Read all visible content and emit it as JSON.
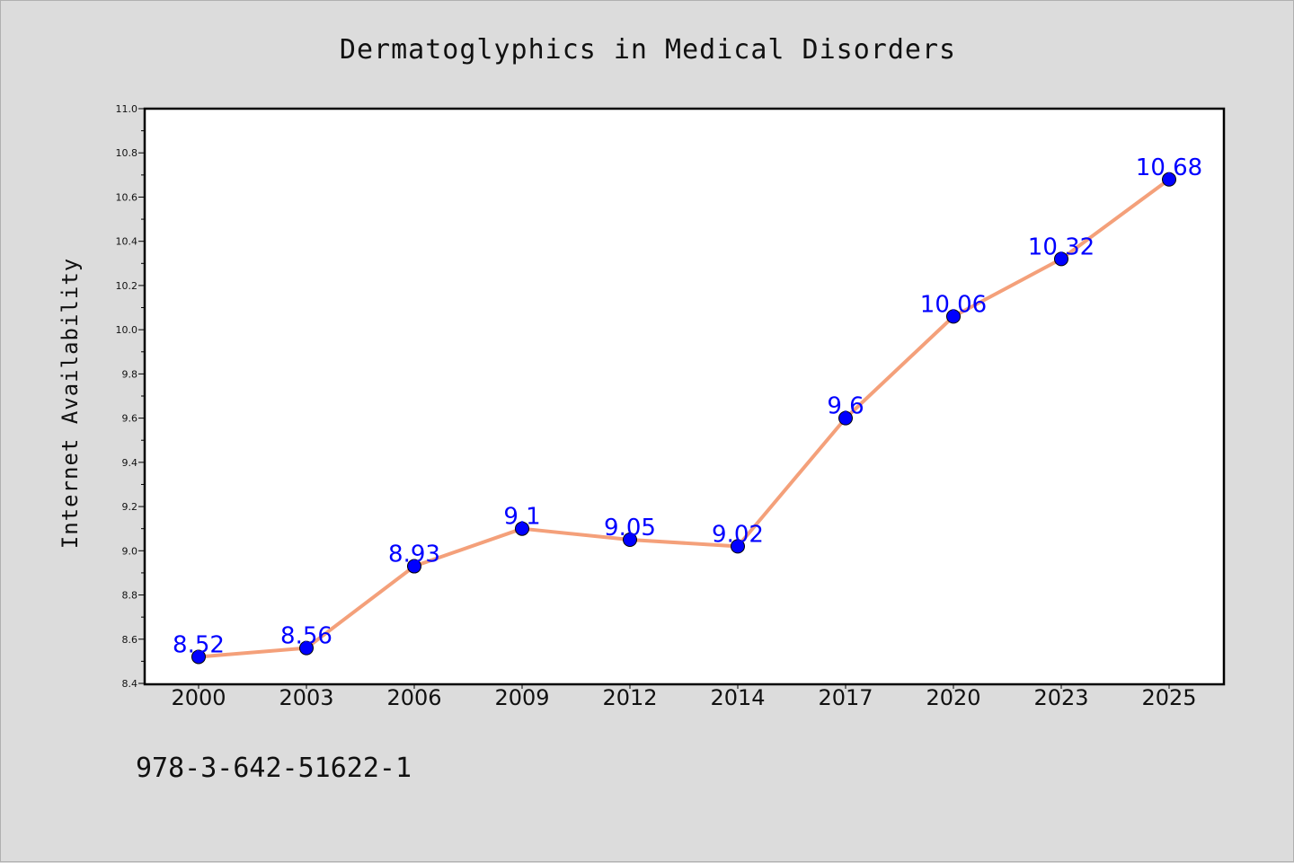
{
  "chart_data": {
    "type": "line",
    "title": "Dermatoglyphics in Medical Disorders",
    "xlabel": "",
    "ylabel": "Internet Availability",
    "categories": [
      "2000",
      "2003",
      "2006",
      "2009",
      "2012",
      "2014",
      "2017",
      "2020",
      "2023",
      "2025"
    ],
    "series": [
      {
        "values": [
          8.52,
          8.56,
          8.93,
          9.1,
          9.05,
          9.02,
          9.6,
          10.06,
          10.32,
          10.68
        ],
        "data_labels": [
          "8.52",
          "8.56",
          "8.93",
          "9.1",
          "9.05",
          "9.02",
          "9.6",
          "10.06",
          "10.32",
          "10.68"
        ],
        "line_color": "#f4a07a",
        "marker_color": "#0000ff"
      }
    ],
    "ylim": [
      8.4,
      11.0
    ],
    "yticks": [
      "8.4",
      "8.6",
      "8.8",
      "9.0",
      "9.2",
      "9.4",
      "9.6",
      "9.8",
      "10.0",
      "10.2",
      "10.4",
      "10.6",
      "10.8",
      "11.0"
    ],
    "grid": false,
    "legend": "none"
  },
  "footnote": "978-3-642-51622-1",
  "colors": {
    "background": "#dcdcdc",
    "plot_area": "#ffffff",
    "axes": "#000000",
    "data_label": "#0000ff"
  }
}
